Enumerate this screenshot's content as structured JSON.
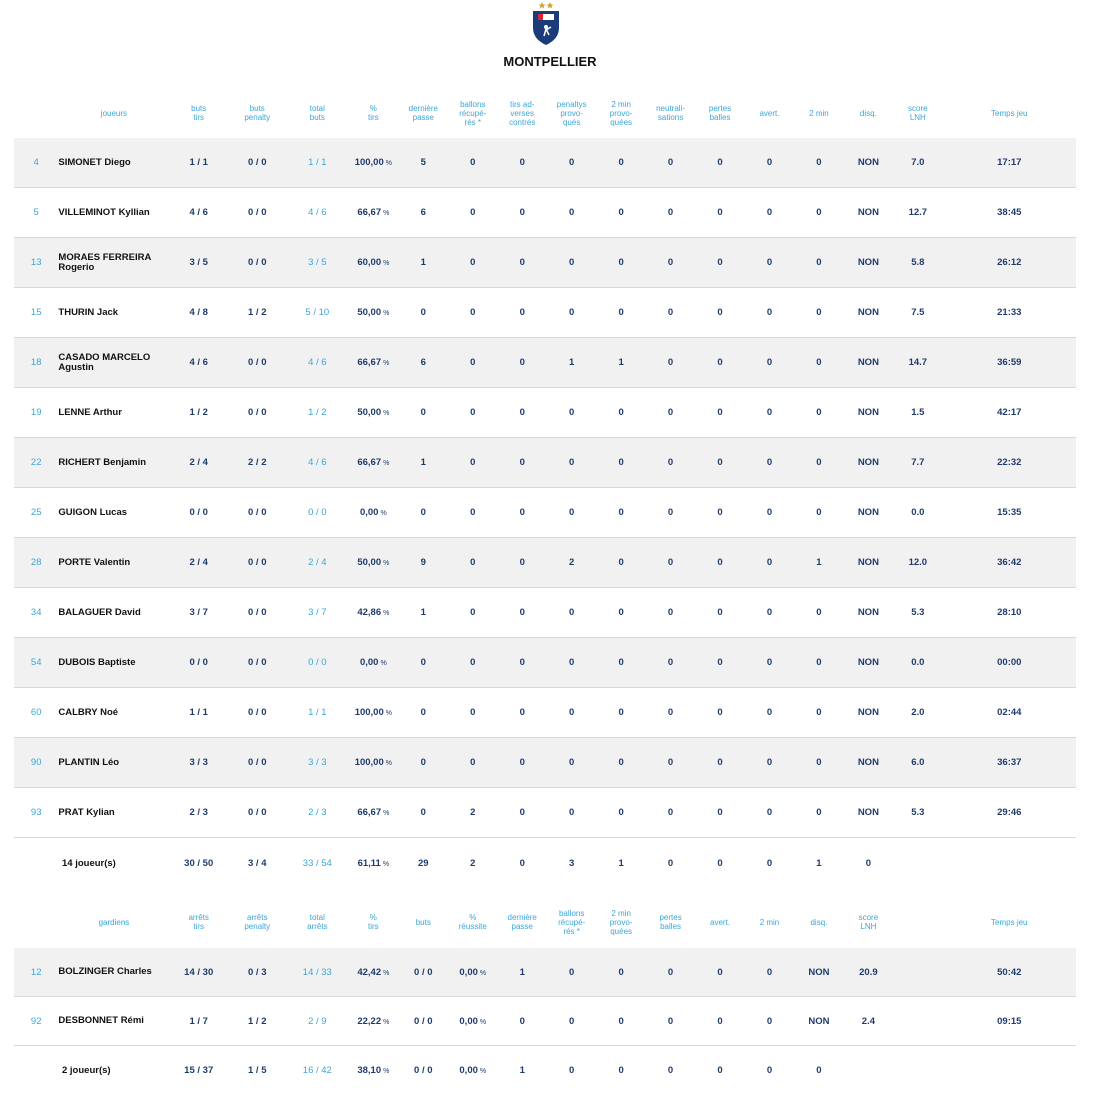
{
  "team": "MONTPELLIER",
  "players": {
    "headers": [
      "",
      "joueurs",
      "buts\ntirs",
      "buts\npenalty",
      "total\nbuts",
      "%\ntirs",
      "dernière\npasse",
      "ballons\nrécupé-\nrés *",
      "tirs ad-\nverses\ncontrés",
      "penaltys\nprovo-\nqués",
      "2 min\nprovo-\nquées",
      "neutrali-\nsations",
      "pertes\nballes",
      "avert.",
      "2 min",
      "disq.",
      "score\nLNH",
      "Temps jeu"
    ],
    "rows": [
      {
        "num": "4",
        "name": "SIMONET Diego",
        "c": [
          "1 / 1",
          "0 / 0",
          "1 / 1",
          "100,00",
          "5",
          "0",
          "0",
          "0",
          "0",
          "0",
          "0",
          "0",
          "0",
          "NON",
          "7.0",
          "17:17"
        ]
      },
      {
        "num": "5",
        "name": "VILLEMINOT Kyllian",
        "c": [
          "4 / 6",
          "0 / 0",
          "4 / 6",
          "66,67",
          "6",
          "0",
          "0",
          "0",
          "0",
          "0",
          "0",
          "0",
          "0",
          "NON",
          "12.7",
          "38:45"
        ]
      },
      {
        "num": "13",
        "name": "MORAES FERREIRA Rogerio",
        "c": [
          "3 / 5",
          "0 / 0",
          "3 / 5",
          "60,00",
          "1",
          "0",
          "0",
          "0",
          "0",
          "0",
          "0",
          "0",
          "0",
          "NON",
          "5.8",
          "26:12"
        ]
      },
      {
        "num": "15",
        "name": "THURIN Jack",
        "c": [
          "4 / 8",
          "1 / 2",
          "5 / 10",
          "50,00",
          "0",
          "0",
          "0",
          "0",
          "0",
          "0",
          "0",
          "0",
          "0",
          "NON",
          "7.5",
          "21:33"
        ]
      },
      {
        "num": "18",
        "name": "CASADO MARCELO Agustin",
        "c": [
          "4 / 6",
          "0 / 0",
          "4 / 6",
          "66,67",
          "6",
          "0",
          "0",
          "1",
          "1",
          "0",
          "0",
          "0",
          "0",
          "NON",
          "14.7",
          "36:59"
        ]
      },
      {
        "num": "19",
        "name": "LENNE Arthur",
        "c": [
          "1 / 2",
          "0 / 0",
          "1 / 2",
          "50,00",
          "0",
          "0",
          "0",
          "0",
          "0",
          "0",
          "0",
          "0",
          "0",
          "NON",
          "1.5",
          "42:17"
        ]
      },
      {
        "num": "22",
        "name": "RICHERT Benjamin",
        "c": [
          "2 / 4",
          "2 / 2",
          "4 / 6",
          "66,67",
          "1",
          "0",
          "0",
          "0",
          "0",
          "0",
          "0",
          "0",
          "0",
          "NON",
          "7.7",
          "22:32"
        ]
      },
      {
        "num": "25",
        "name": "GUIGON Lucas",
        "c": [
          "0 / 0",
          "0 / 0",
          "0 / 0",
          "0,00",
          "0",
          "0",
          "0",
          "0",
          "0",
          "0",
          "0",
          "0",
          "0",
          "NON",
          "0.0",
          "15:35"
        ]
      },
      {
        "num": "28",
        "name": "PORTE Valentin",
        "c": [
          "2 / 4",
          "0 / 0",
          "2 / 4",
          "50,00",
          "9",
          "0",
          "0",
          "2",
          "0",
          "0",
          "0",
          "0",
          "1",
          "NON",
          "12.0",
          "36:42"
        ]
      },
      {
        "num": "34",
        "name": "BALAGUER David",
        "c": [
          "3 / 7",
          "0 / 0",
          "3 / 7",
          "42,86",
          "1",
          "0",
          "0",
          "0",
          "0",
          "0",
          "0",
          "0",
          "0",
          "NON",
          "5.3",
          "28:10"
        ]
      },
      {
        "num": "54",
        "name": "DUBOIS Baptiste",
        "c": [
          "0 / 0",
          "0 / 0",
          "0 / 0",
          "0,00",
          "0",
          "0",
          "0",
          "0",
          "0",
          "0",
          "0",
          "0",
          "0",
          "NON",
          "0.0",
          "00:00"
        ]
      },
      {
        "num": "60",
        "name": "CALBRY Noé",
        "c": [
          "1 / 1",
          "0 / 0",
          "1 / 1",
          "100,00",
          "0",
          "0",
          "0",
          "0",
          "0",
          "0",
          "0",
          "0",
          "0",
          "NON",
          "2.0",
          "02:44"
        ]
      },
      {
        "num": "90",
        "name": "PLANTIN Léo",
        "c": [
          "3 / 3",
          "0 / 0",
          "3 / 3",
          "100,00",
          "0",
          "0",
          "0",
          "0",
          "0",
          "0",
          "0",
          "0",
          "0",
          "NON",
          "6.0",
          "36:37"
        ]
      },
      {
        "num": "93",
        "name": "PRAT Kylian",
        "c": [
          "2 / 3",
          "0 / 0",
          "2 / 3",
          "66,67",
          "0",
          "2",
          "0",
          "0",
          "0",
          "0",
          "0",
          "0",
          "0",
          "NON",
          "5.3",
          "29:46"
        ]
      }
    ],
    "total": {
      "label": "14 joueur(s)",
      "c": [
        "30 / 50",
        "3 / 4",
        "33 / 54",
        "61,11",
        "29",
        "2",
        "0",
        "3",
        "1",
        "0",
        "0",
        "0",
        "1",
        "0",
        "",
        ""
      ]
    }
  },
  "keepers": {
    "headers": [
      "",
      "gardiens",
      "arrêts\ntirs",
      "arrêts\npenalty",
      "total\narrêts",
      "%\ntirs",
      "buts",
      "%\nréussite",
      "dernière\npasse",
      "ballons\nrécupé-\nrés *",
      "2 min\nprovo-\nquées",
      "pertes\nballes",
      "avert.",
      "2 min",
      "disq.",
      "score\nLNH",
      "",
      "Temps jeu"
    ],
    "rows": [
      {
        "num": "12",
        "name": "BOLZINGER Charles",
        "c": [
          "14 / 30",
          "0 / 3",
          "14 / 33",
          "42,42",
          "0 / 0",
          "0,00",
          "1",
          "0",
          "0",
          "0",
          "0",
          "0",
          "NON",
          "20.9",
          "",
          "50:42"
        ]
      },
      {
        "num": "92",
        "name": "DESBONNET Rémi",
        "c": [
          "1 / 7",
          "1 / 2",
          "2 / 9",
          "22,22",
          "0 / 0",
          "0,00",
          "0",
          "0",
          "0",
          "0",
          "0",
          "0",
          "NON",
          "2.4",
          "",
          "09:15"
        ]
      }
    ],
    "total": {
      "label": "2 joueur(s)",
      "c": [
        "15 / 37",
        "1 / 5",
        "16 / 42",
        "38,10",
        "0 / 0",
        "0,00",
        "1",
        "0",
        "0",
        "0",
        "0",
        "0",
        "0",
        "",
        "",
        ""
      ]
    }
  },
  "pct_unit": "%",
  "colors": {
    "accent": "#3aa6d8",
    "row_shade": "#f1f1f1",
    "logo_bg": "#1c3b7a",
    "logo_red": "#d7262f"
  }
}
